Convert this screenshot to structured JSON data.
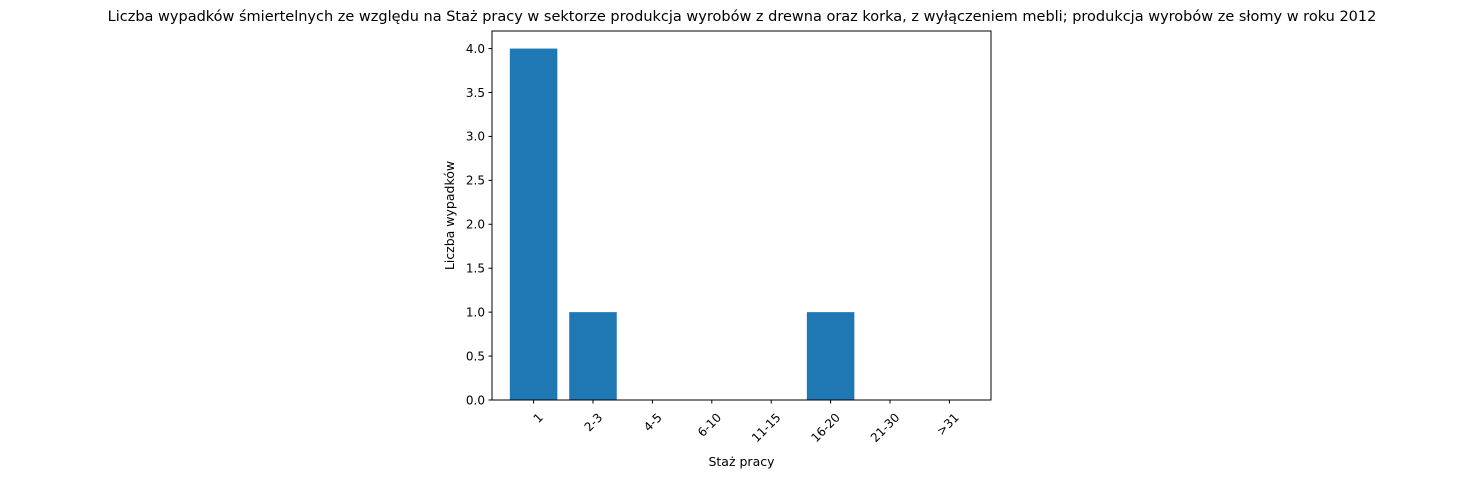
{
  "chart_data": {
    "type": "bar",
    "title": "Liczba wypadków śmiertelnych ze względu na Staż pracy w sektorze produkcja wyrobów z drewna oraz korka, z wyłączeniem mebli; produkcja wyrobów ze słomy w roku 2012",
    "xlabel": "Staż pracy",
    "ylabel": "Liczba wypadków",
    "categories": [
      "1",
      "2-3",
      "4-5",
      "6-10",
      "11-15",
      "16-20",
      "21-30",
      ">31"
    ],
    "values": [
      4,
      1,
      0,
      0,
      0,
      1,
      0,
      0
    ],
    "ylim": [
      0,
      4.2
    ],
    "yticks": [
      "0.0",
      "0.5",
      "1.0",
      "1.5",
      "2.0",
      "2.5",
      "3.0",
      "3.5",
      "4.0"
    ],
    "bar_color": "#1f77b4",
    "grid": false,
    "legend": "none"
  }
}
